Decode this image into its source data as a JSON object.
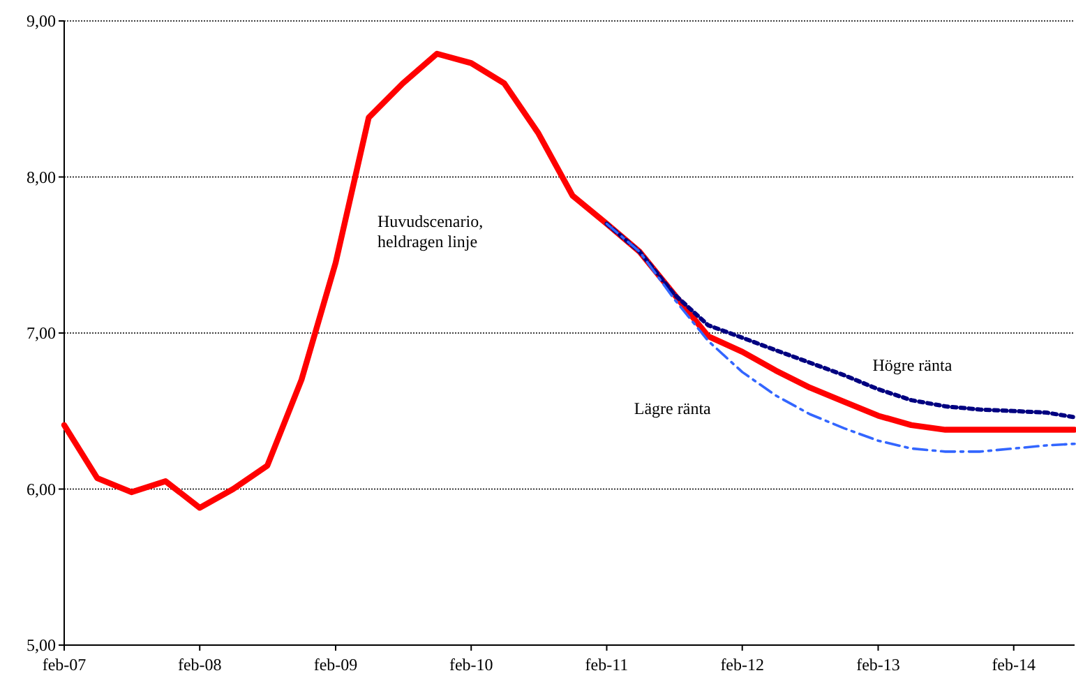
{
  "chart_data": {
    "type": "line",
    "grid": "y",
    "xlim": [
      "2007-02",
      "2014-07-15"
    ],
    "ylim": [
      5,
      9
    ],
    "xticks": [
      {
        "value": "2007-02",
        "label": "feb-07"
      },
      {
        "value": "2008-02",
        "label": "feb-08"
      },
      {
        "value": "2009-02",
        "label": "feb-09"
      },
      {
        "value": "2010-02",
        "label": "feb-10"
      },
      {
        "value": "2011-02",
        "label": "feb-11"
      },
      {
        "value": "2012-02",
        "label": "feb-12"
      },
      {
        "value": "2013-02",
        "label": "feb-13"
      },
      {
        "value": "2014-02",
        "label": "feb-14"
      }
    ],
    "yticks": [
      {
        "value": 5,
        "label": "5,00"
      },
      {
        "value": 6,
        "label": "6,00"
      },
      {
        "value": 7,
        "label": "7,00"
      },
      {
        "value": 8,
        "label": "8,00"
      },
      {
        "value": 9,
        "label": "9,00"
      }
    ],
    "series": [
      {
        "name": "Huvudscenario, heldragen linje",
        "color": "#ff0000",
        "line_style": "solid",
        "x": [
          "2007-02",
          "2007-05",
          "2007-08",
          "2007-11",
          "2008-02",
          "2008-05",
          "2008-08",
          "2008-11",
          "2009-02",
          "2009-05",
          "2009-08",
          "2009-11",
          "2010-02",
          "2010-05",
          "2010-08",
          "2010-11",
          "2011-02",
          "2011-05",
          "2011-08",
          "2011-11",
          "2012-02",
          "2012-05",
          "2012-08",
          "2012-11",
          "2013-02",
          "2013-05",
          "2013-08",
          "2013-11",
          "2014-02",
          "2014-05",
          "2014-07-15"
        ],
        "values": [
          6.41,
          6.07,
          5.98,
          6.05,
          5.88,
          6.0,
          6.15,
          6.7,
          7.45,
          8.38,
          8.6,
          8.79,
          8.73,
          8.6,
          8.28,
          7.88,
          7.7,
          7.52,
          7.25,
          6.98,
          6.88,
          6.76,
          6.65,
          6.56,
          6.47,
          6.41,
          6.38,
          6.38,
          6.38,
          6.38,
          6.38
        ]
      },
      {
        "name": "Högre ränta",
        "color": "#000080",
        "line_style": "dotted",
        "x": [
          "2011-02",
          "2011-05",
          "2011-08",
          "2011-11",
          "2012-02",
          "2012-05",
          "2012-08",
          "2012-11",
          "2013-02",
          "2013-05",
          "2013-08",
          "2013-11",
          "2014-02",
          "2014-05",
          "2014-07-15"
        ],
        "values": [
          7.7,
          7.52,
          7.25,
          7.05,
          6.97,
          6.89,
          6.81,
          6.73,
          6.64,
          6.57,
          6.53,
          6.51,
          6.5,
          6.49,
          6.46
        ]
      },
      {
        "name": "Lägre ränta",
        "color": "#3366ff",
        "line_style": "dashed",
        "x": [
          "2011-02",
          "2011-05",
          "2011-08",
          "2011-11",
          "2012-02",
          "2012-05",
          "2012-08",
          "2012-11",
          "2013-02",
          "2013-05",
          "2013-08",
          "2013-11",
          "2014-02",
          "2014-05",
          "2014-07-15"
        ],
        "values": [
          7.7,
          7.52,
          7.22,
          6.95,
          6.75,
          6.6,
          6.48,
          6.39,
          6.31,
          6.26,
          6.24,
          6.24,
          6.26,
          6.28,
          6.29
        ]
      }
    ]
  }
}
